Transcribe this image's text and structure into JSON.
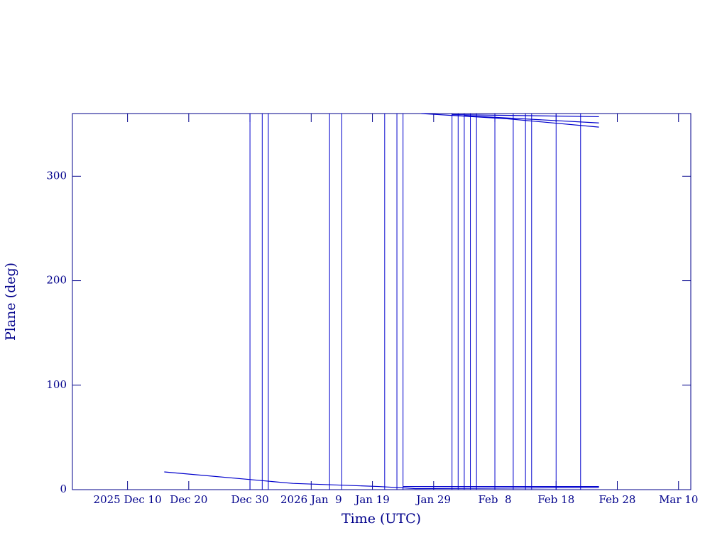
{
  "chart_data": {
    "type": "line",
    "x_label": "Time (UTC)",
    "y_label": "Plane (deg)",
    "xlim": [
      "2025-12-01",
      "2026-03-12"
    ],
    "ylim": [
      0,
      360
    ],
    "xticks": [
      {
        "value": "2025-12-10",
        "label": "2025 Dec 10"
      },
      {
        "value": "2025-12-20",
        "label": "Dec 20"
      },
      {
        "value": "2025-12-30",
        "label": "Dec 30"
      },
      {
        "value": "2026-01-09",
        "label": "2026 Jan  9"
      },
      {
        "value": "2026-01-19",
        "label": "Jan 19"
      },
      {
        "value": "2026-01-29",
        "label": "Jan 29"
      },
      {
        "value": "2026-02-08",
        "label": "Feb  8"
      },
      {
        "value": "2026-02-18",
        "label": "Feb 18"
      },
      {
        "value": "2026-02-28",
        "label": "Feb 28"
      },
      {
        "value": "2026-03-10",
        "label": "Mar 10"
      }
    ],
    "yticks": [
      0,
      100,
      200,
      300
    ],
    "color": "#0000cc",
    "series": [
      {
        "x": [
          "2025-12-16",
          "2026-01-06",
          "2026-01-20",
          "2026-01-26",
          "2026-02-25"
        ],
        "values": [
          17,
          6,
          3,
          1,
          2
        ]
      },
      {
        "x": [
          "2026-01-24",
          "2026-02-10",
          "2026-02-25"
        ],
        "values": [
          3,
          3,
          3
        ]
      },
      {
        "x": [
          "2026-01-27",
          "2026-02-10",
          "2026-02-25"
        ],
        "values": [
          360,
          355,
          347
        ]
      },
      {
        "x": [
          "2026-02-01",
          "2026-02-25"
        ],
        "values": [
          359,
          357
        ]
      },
      {
        "x": [
          "2026-02-03",
          "2026-02-25"
        ],
        "values": [
          358,
          351
        ]
      }
    ],
    "wraps": [
      "2025-12-30",
      "2026-01-01",
      "2026-01-02",
      "2026-01-12",
      "2026-01-14",
      "2026-01-21",
      "2026-01-23",
      "2026-01-24",
      "2026-02-01",
      "2026-02-02",
      "2026-02-03",
      "2026-02-04",
      "2026-02-05",
      "2026-02-08",
      "2026-02-11",
      "2026-02-13",
      "2026-02-14",
      "2026-02-18",
      "2026-02-22"
    ]
  }
}
